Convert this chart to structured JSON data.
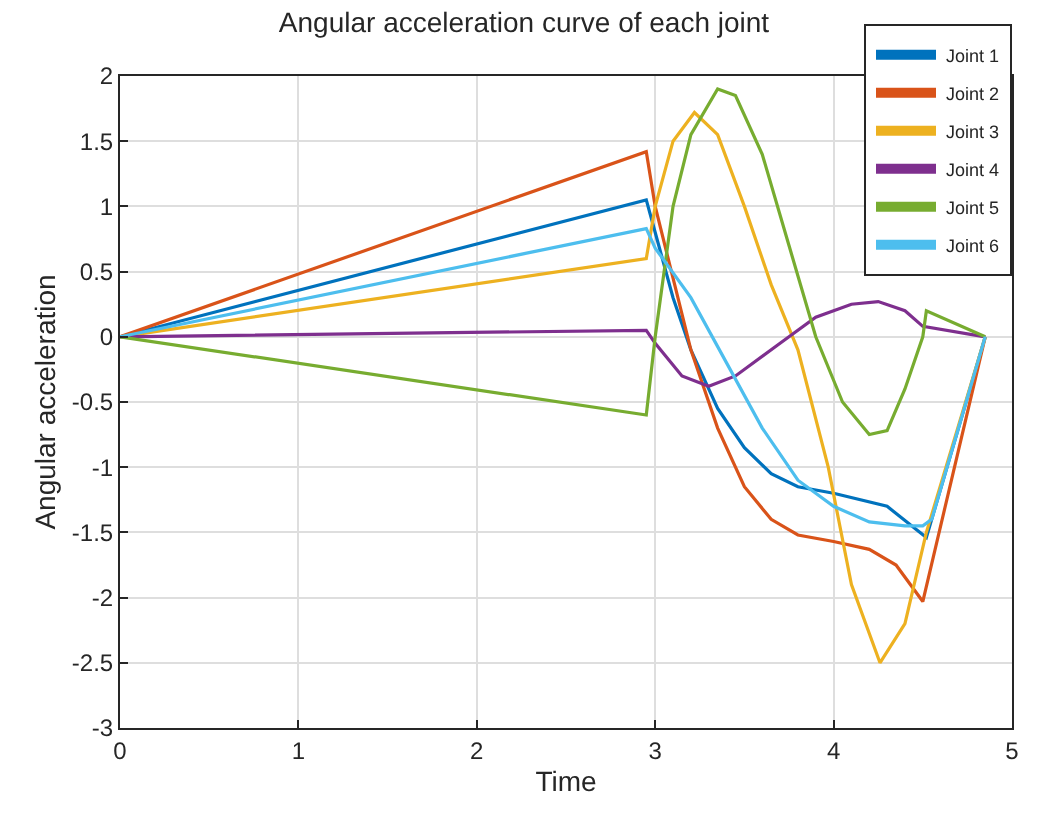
{
  "chart_data": {
    "type": "line",
    "title": "Angular acceleration curve of each joint",
    "xlabel": "Time",
    "ylabel": "Angular acceleration",
    "xlim": [
      0,
      5
    ],
    "xticks": [
      0,
      1,
      2,
      3,
      4,
      5
    ],
    "ylim": [
      -3,
      2
    ],
    "yticks": [
      -3,
      -2.5,
      -2,
      -1.5,
      -1,
      -0.5,
      0,
      0.5,
      1,
      1.5,
      2
    ],
    "grid": true,
    "legend": "top right",
    "marker": "none",
    "line_style": "solid",
    "series": [
      {
        "name": "Joint 1",
        "color": "#0072bd",
        "x": [
          0,
          2.95,
          3.0,
          3.1,
          3.2,
          3.35,
          3.5,
          3.65,
          3.8,
          4.0,
          4.3,
          4.52,
          4.85
        ],
        "values": [
          0,
          1.05,
          0.8,
          0.3,
          -0.1,
          -0.55,
          -0.85,
          -1.05,
          -1.15,
          -1.2,
          -1.3,
          -1.54,
          0
        ]
      },
      {
        "name": "Joint 2",
        "color": "#d95319",
        "x": [
          0,
          2.95,
          3.0,
          3.1,
          3.2,
          3.35,
          3.5,
          3.65,
          3.8,
          4.0,
          4.2,
          4.35,
          4.5,
          4.85
        ],
        "values": [
          0,
          1.42,
          1.0,
          0.45,
          -0.1,
          -0.7,
          -1.15,
          -1.4,
          -1.52,
          -1.57,
          -1.63,
          -1.75,
          -2.03,
          0
        ]
      },
      {
        "name": "Joint 3",
        "color": "#edb120",
        "x": [
          0,
          2.95,
          3.0,
          3.1,
          3.22,
          3.35,
          3.5,
          3.65,
          3.8,
          3.97,
          4.1,
          4.26,
          4.4,
          4.52,
          4.85
        ],
        "values": [
          0,
          0.6,
          1.0,
          1.5,
          1.72,
          1.55,
          1.0,
          0.4,
          -0.1,
          -1.0,
          -1.9,
          -2.5,
          -2.2,
          -1.5,
          0
        ]
      },
      {
        "name": "Joint 4",
        "color": "#7e2f8e",
        "x": [
          0,
          2.95,
          3.0,
          3.15,
          3.3,
          3.45,
          3.7,
          3.9,
          4.1,
          4.25,
          4.4,
          4.5,
          4.85
        ],
        "values": [
          0,
          0.05,
          -0.05,
          -0.3,
          -0.38,
          -0.3,
          -0.05,
          0.15,
          0.25,
          0.27,
          0.2,
          0.08,
          0
        ]
      },
      {
        "name": "Joint 5",
        "color": "#77ac30",
        "x": [
          0,
          2.95,
          3.0,
          3.1,
          3.2,
          3.35,
          3.45,
          3.6,
          3.75,
          3.9,
          4.05,
          4.2,
          4.3,
          4.4,
          4.5,
          4.52,
          4.85
        ],
        "values": [
          0,
          -0.6,
          0.0,
          1.0,
          1.55,
          1.9,
          1.85,
          1.4,
          0.7,
          0.0,
          -0.5,
          -0.75,
          -0.72,
          -0.4,
          0.0,
          0.2,
          0
        ]
      },
      {
        "name": "Joint 6",
        "color": "#4dbeee",
        "x": [
          0,
          2.95,
          3.0,
          3.2,
          3.4,
          3.6,
          3.8,
          4.0,
          4.2,
          4.4,
          4.5,
          4.55,
          4.85
        ],
        "values": [
          0,
          0.83,
          0.68,
          0.3,
          -0.2,
          -0.7,
          -1.1,
          -1.3,
          -1.42,
          -1.45,
          -1.45,
          -1.4,
          0
        ]
      }
    ]
  }
}
